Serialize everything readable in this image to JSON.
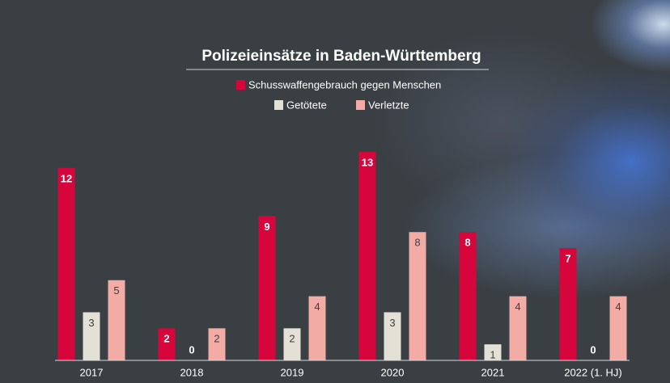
{
  "chart_data": {
    "type": "bar",
    "title": "Polizeieinsätze in Baden-Württemberg",
    "categories": [
      "2017",
      "2018",
      "2019",
      "2020",
      "2021",
      "2022 (1. HJ)"
    ],
    "series": [
      {
        "name": "Schusswaffengebrauch gegen Menschen",
        "color": "#d6063c",
        "values": [
          12,
          2,
          9,
          13,
          8,
          7
        ]
      },
      {
        "name": "Getötete",
        "color": "#e3e0d6",
        "values": [
          3,
          0,
          2,
          3,
          1,
          0
        ]
      },
      {
        "name": "Verletzte",
        "color": "#f3aba6",
        "values": [
          5,
          2,
          4,
          8,
          4,
          4
        ]
      }
    ]
  }
}
